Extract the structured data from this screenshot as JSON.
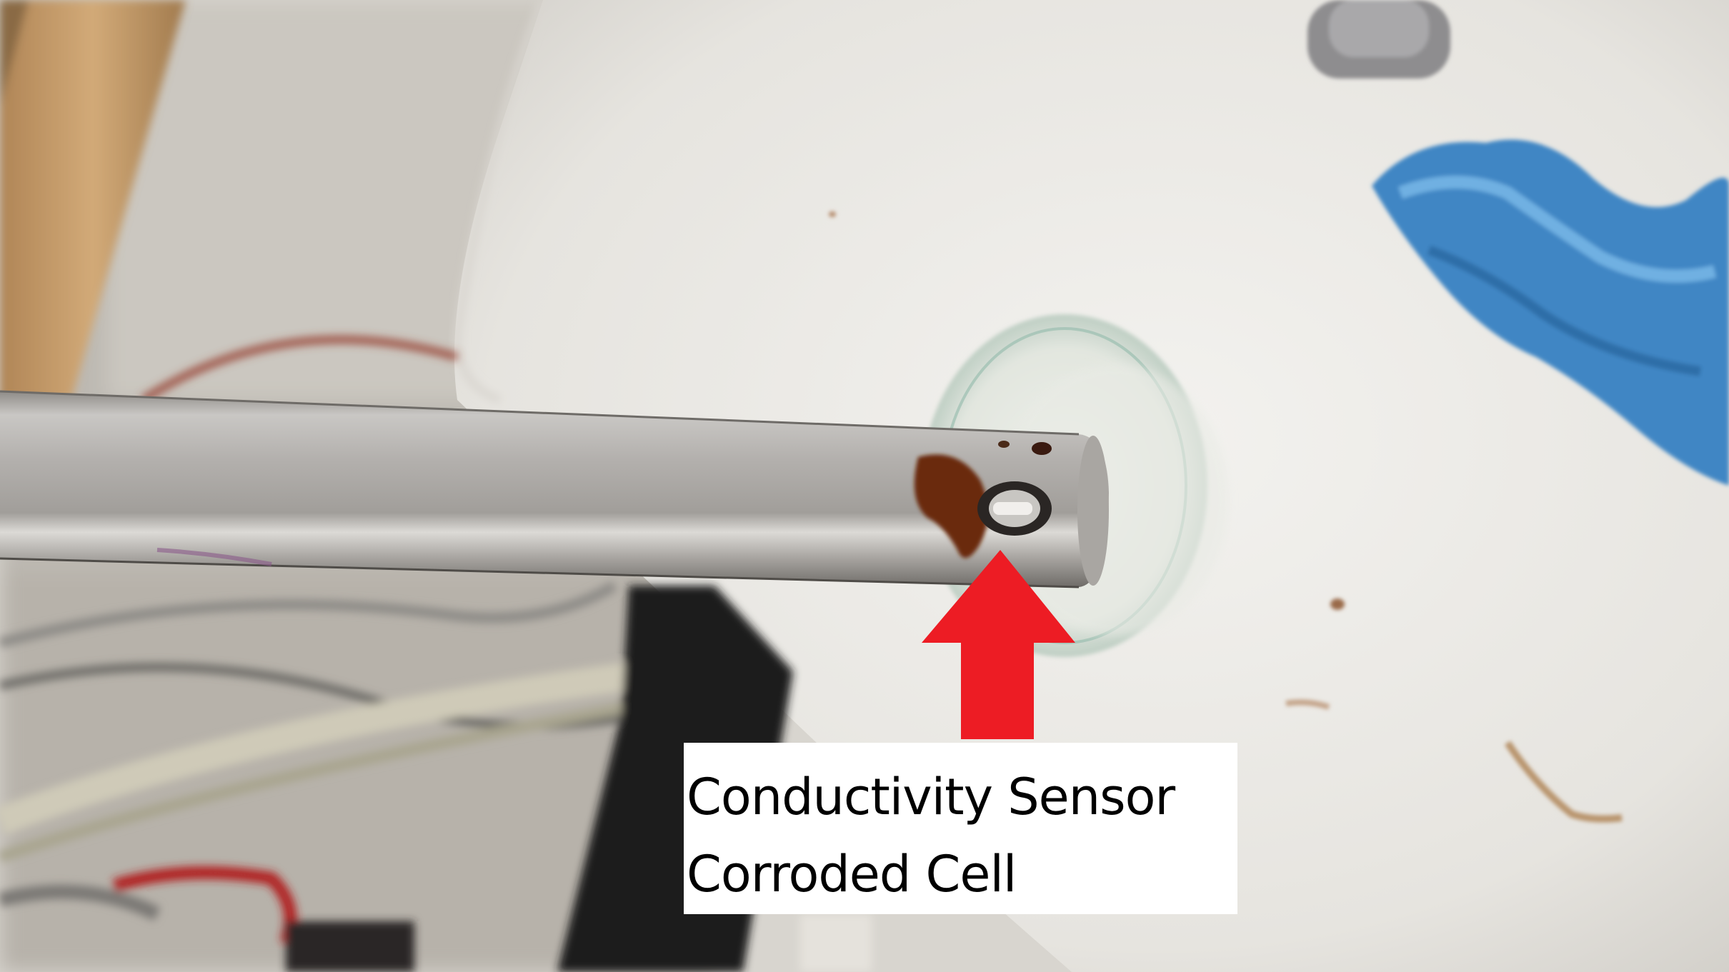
{
  "annotation": {
    "line1": "Conductivity Sensor",
    "line2": "Corroded Cell"
  },
  "colors": {
    "arrow": "#ed1c24",
    "label_background": "#ffffff",
    "label_text": "#000000",
    "probe": "#b7b5b2",
    "rust": "#6b2a10",
    "sink": "#ebe9e5",
    "towel": "#4a90c8"
  },
  "scene": {
    "subject": "stainless-steel-conductivity-probe",
    "background_objects": [
      "white-sink",
      "glass-beaker",
      "blue-towel",
      "wires",
      "wooden-frame",
      "black-bracket"
    ]
  }
}
